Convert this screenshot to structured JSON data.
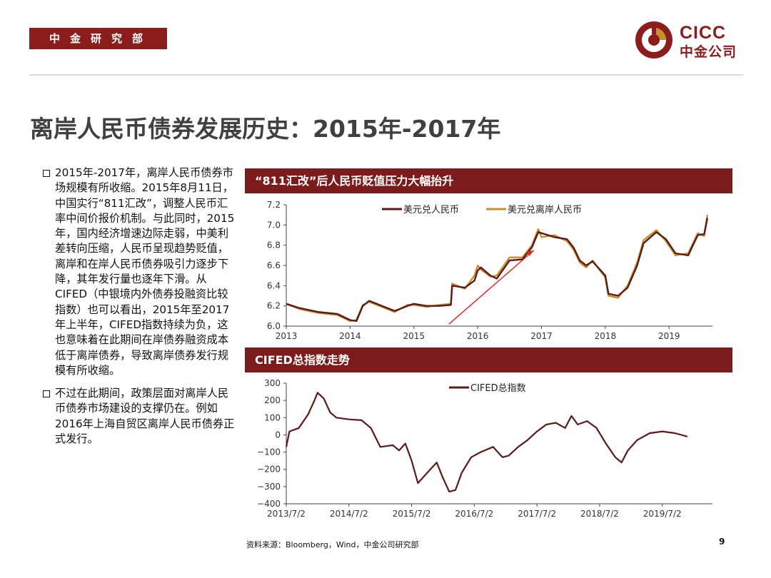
{
  "header": {
    "dept_tag": "中金研究部",
    "logo_en": "CICC",
    "logo_cn": "中金公司",
    "colors": {
      "brand": "#8b1d1d",
      "panel": "#7b1b1b"
    }
  },
  "page_title": "离岸人民币债券发展历史：2015年-2017年",
  "bullets": [
    "2015年-2017年，离岸人民币债券市场规模有所收缩。2015年8月11日，中国实行“811汇改”，调整人民币汇率中间价报价机制。与此同时，2015年，国内经济增速边际走弱，中美利差转向压缩，人民币呈现趋势贬值，离岸和在岸人民币债券吸引力逐步下降，其年发行量也逐年下滑。从CIFED（中银境内外债券投融资比较指数）也可以看出，2015年至2017年上半年，CIFED指数持续为负，这也意味着在此期间在岸债券融资成本低于离岸债券，导致离岸债券发行规模有所收缩。",
    "不过在此期间，政策层面对离岸人民币债券市场建设的支撑仍在。例如2016年上海自贸区离岸人民币债券正式发行。"
  ],
  "panel1_title": "“811汇改”后人民币贬值压力大幅抬升",
  "panel2_title": "CIFED总指数走势",
  "chart_data": [
    {
      "type": "line",
      "x_ticks": [
        "2013",
        "2014",
        "2015",
        "2016",
        "2017",
        "2018",
        "2019"
      ],
      "ylim": [
        6.0,
        7.2
      ],
      "y_ticks": [
        "7.2",
        "7.0",
        "6.8",
        "6.6",
        "6.4",
        "6.2",
        "6.0"
      ],
      "legend_position": "top",
      "annotation": "red-arrow-upward",
      "series": [
        {
          "name": "美元兑人民币",
          "color": "#5a1a1a",
          "points": [
            [
              2013.0,
              6.22
            ],
            [
              2013.2,
              6.18
            ],
            [
              2013.5,
              6.14
            ],
            [
              2013.8,
              6.12
            ],
            [
              2014.0,
              6.06
            ],
            [
              2014.1,
              6.05
            ],
            [
              2014.2,
              6.2
            ],
            [
              2014.3,
              6.25
            ],
            [
              2014.5,
              6.2
            ],
            [
              2014.7,
              6.15
            ],
            [
              2014.9,
              6.2
            ],
            [
              2015.0,
              6.22
            ],
            [
              2015.2,
              6.2
            ],
            [
              2015.4,
              6.2
            ],
            [
              2015.58,
              6.21
            ],
            [
              2015.6,
              6.4
            ],
            [
              2015.8,
              6.38
            ],
            [
              2015.95,
              6.45
            ],
            [
              2016.0,
              6.55
            ],
            [
              2016.05,
              6.58
            ],
            [
              2016.2,
              6.5
            ],
            [
              2016.3,
              6.47
            ],
            [
              2016.5,
              6.65
            ],
            [
              2016.7,
              6.66
            ],
            [
              2016.85,
              6.78
            ],
            [
              2016.95,
              6.93
            ],
            [
              2017.0,
              6.92
            ],
            [
              2017.2,
              6.88
            ],
            [
              2017.4,
              6.86
            ],
            [
              2017.5,
              6.78
            ],
            [
              2017.6,
              6.65
            ],
            [
              2017.7,
              6.6
            ],
            [
              2017.8,
              6.64
            ],
            [
              2018.0,
              6.5
            ],
            [
              2018.05,
              6.32
            ],
            [
              2018.2,
              6.3
            ],
            [
              2018.35,
              6.38
            ],
            [
              2018.5,
              6.6
            ],
            [
              2018.6,
              6.82
            ],
            [
              2018.8,
              6.93
            ],
            [
              2018.95,
              6.86
            ],
            [
              2019.1,
              6.72
            ],
            [
              2019.3,
              6.7
            ],
            [
              2019.45,
              6.9
            ],
            [
              2019.55,
              6.91
            ],
            [
              2019.6,
              7.07
            ]
          ]
        },
        {
          "name": "美元兑离岸人民币",
          "color": "#c8902a",
          "points": [
            [
              2013.0,
              6.22
            ],
            [
              2013.2,
              6.17
            ],
            [
              2013.5,
              6.13
            ],
            [
              2013.8,
              6.11
            ],
            [
              2014.0,
              6.05
            ],
            [
              2014.1,
              6.06
            ],
            [
              2014.2,
              6.21
            ],
            [
              2014.3,
              6.24
            ],
            [
              2014.5,
              6.19
            ],
            [
              2014.7,
              6.14
            ],
            [
              2014.9,
              6.21
            ],
            [
              2015.0,
              6.21
            ],
            [
              2015.2,
              6.19
            ],
            [
              2015.4,
              6.21
            ],
            [
              2015.58,
              6.22
            ],
            [
              2015.6,
              6.42
            ],
            [
              2015.8,
              6.37
            ],
            [
              2015.95,
              6.5
            ],
            [
              2016.0,
              6.6
            ],
            [
              2016.05,
              6.56
            ],
            [
              2016.2,
              6.49
            ],
            [
              2016.3,
              6.5
            ],
            [
              2016.5,
              6.68
            ],
            [
              2016.7,
              6.68
            ],
            [
              2016.85,
              6.8
            ],
            [
              2016.95,
              6.96
            ],
            [
              2017.0,
              6.88
            ],
            [
              2017.2,
              6.9
            ],
            [
              2017.4,
              6.84
            ],
            [
              2017.5,
              6.76
            ],
            [
              2017.6,
              6.63
            ],
            [
              2017.7,
              6.58
            ],
            [
              2017.8,
              6.65
            ],
            [
              2018.0,
              6.48
            ],
            [
              2018.05,
              6.3
            ],
            [
              2018.2,
              6.28
            ],
            [
              2018.35,
              6.4
            ],
            [
              2018.5,
              6.63
            ],
            [
              2018.6,
              6.85
            ],
            [
              2018.8,
              6.95
            ],
            [
              2018.95,
              6.84
            ],
            [
              2019.1,
              6.7
            ],
            [
              2019.3,
              6.72
            ],
            [
              2019.45,
              6.92
            ],
            [
              2019.55,
              6.89
            ],
            [
              2019.6,
              7.1
            ]
          ]
        }
      ]
    },
    {
      "type": "line",
      "x_ticks": [
        "2013/7/2",
        "2014/7/2",
        "2015/7/2",
        "2016/7/2",
        "2017/7/2",
        "2018/7/2",
        "2019/7/2"
      ],
      "ylim": [
        -400,
        300
      ],
      "y_ticks": [
        "300",
        "200",
        "100",
        "0",
        "−100",
        "−200",
        "−300",
        "−400"
      ],
      "legend_position": "top",
      "series": [
        {
          "name": "CIFED总指数",
          "color": "#5a1a1a",
          "points": [
            [
              2013.5,
              -70
            ],
            [
              2013.55,
              20
            ],
            [
              2013.7,
              40
            ],
            [
              2013.85,
              120
            ],
            [
              2013.95,
              200
            ],
            [
              2014.0,
              245
            ],
            [
              2014.1,
              210
            ],
            [
              2014.2,
              130
            ],
            [
              2014.3,
              100
            ],
            [
              2014.5,
              90
            ],
            [
              2014.7,
              85
            ],
            [
              2014.85,
              40
            ],
            [
              2015.0,
              -70
            ],
            [
              2015.2,
              -60
            ],
            [
              2015.3,
              -90
            ],
            [
              2015.4,
              -50
            ],
            [
              2015.5,
              -150
            ],
            [
              2015.6,
              -280
            ],
            [
              2015.75,
              -220
            ],
            [
              2015.9,
              -160
            ],
            [
              2016.0,
              -250
            ],
            [
              2016.1,
              -330
            ],
            [
              2016.2,
              -320
            ],
            [
              2016.3,
              -220
            ],
            [
              2016.45,
              -130
            ],
            [
              2016.6,
              -100
            ],
            [
              2016.8,
              -70
            ],
            [
              2016.95,
              -130
            ],
            [
              2017.05,
              -120
            ],
            [
              2017.2,
              -70
            ],
            [
              2017.35,
              -30
            ],
            [
              2017.5,
              20
            ],
            [
              2017.65,
              60
            ],
            [
              2017.8,
              70
            ],
            [
              2017.95,
              40
            ],
            [
              2018.05,
              110
            ],
            [
              2018.15,
              60
            ],
            [
              2018.3,
              80
            ],
            [
              2018.45,
              40
            ],
            [
              2018.6,
              -50
            ],
            [
              2018.75,
              -130
            ],
            [
              2018.85,
              -160
            ],
            [
              2018.95,
              -90
            ],
            [
              2019.1,
              -30
            ],
            [
              2019.3,
              10
            ],
            [
              2019.5,
              20
            ],
            [
              2019.7,
              10
            ],
            [
              2019.9,
              -10
            ]
          ]
        }
      ]
    }
  ],
  "source": "资料来源：Bloomberg，Wind，中金公司研究部",
  "page_number": "9"
}
